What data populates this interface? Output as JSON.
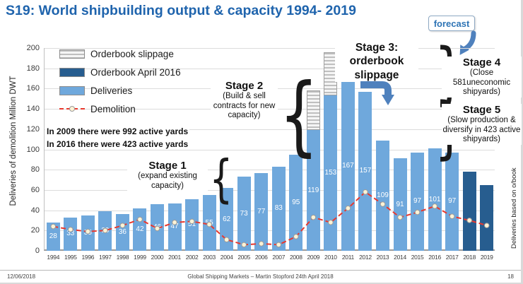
{
  "slide": {
    "title": "S19: World shipbuilding output & capacity 1994- 2019",
    "forecast_label": "forecast",
    "page_number": "18",
    "footer_date": "12/06/2018",
    "footer_center": "Global Shipping Markets – Martin Stopford 24th April 2018"
  },
  "annotations": {
    "yards_2009": "In 2009 there were 992 active yards",
    "yards_2016": "In 2016 there were 423 active yards",
    "stage1_title": "Stage 1",
    "stage1_sub": "(expand existing capacity)",
    "stage2_title": "Stage 2",
    "stage2_sub": "(Build & sell contracts for new capacity)",
    "stage3_title": "Stage 3: orderbook slippage",
    "stage4_title": "Stage 4",
    "stage4_sub": "(Close 581uneconomic shipyards)",
    "stage5_title": "Stage 5",
    "stage5_sub": "(Slow production & diversify in 423 active shipyards)",
    "right_note": "Deliveries based on o/book"
  },
  "glyphs": {
    "brace_open": "{",
    "brace_close": "}"
  },
  "colors": {
    "title_blue": "#1f64ad",
    "deliveries": "#6fa8dc",
    "orderbook": "#275d8f",
    "demolition": "#e8392e",
    "marker_fill": "#fdf3d6",
    "marker_edge": "#9b9b9b",
    "grid": "#dcdcdc",
    "forecast_text": "#2e74b5",
    "arrow_blue": "#4f81bd"
  },
  "chart_data": {
    "type": "bar",
    "title": "World shipbuilding output & capacity 1994-2019",
    "ylabel": "Deliveries of demolition Million DWT",
    "xlabel": "",
    "units": "Million DWT",
    "ylim": [
      0,
      200
    ],
    "ytick_step": 20,
    "grid": true,
    "legend_position": "top-left",
    "categories": [
      "1994",
      "1995",
      "1996",
      "1997",
      "1998",
      "1999",
      "2000",
      "2001",
      "2002",
      "2003",
      "2004",
      "2005",
      "2006",
      "2007",
      "2008",
      "2009",
      "2010",
      "2011",
      "2012",
      "2013",
      "2014",
      "2015",
      "2016",
      "2017",
      "2018",
      "2019"
    ],
    "series": [
      {
        "name": "Deliveries",
        "type": "bar",
        "color_key": "deliveries",
        "values": [
          28,
          33,
          35,
          39,
          36,
          42,
          46,
          47,
          51,
          55,
          62,
          73,
          77,
          83,
          95,
          119,
          153,
          167,
          157,
          109,
          91,
          97,
          101,
          97,
          null,
          null
        ]
      },
      {
        "name": "Orderbook April 2016",
        "type": "bar",
        "color_key": "orderbook",
        "values": [
          null,
          null,
          null,
          null,
          null,
          null,
          null,
          null,
          null,
          null,
          null,
          null,
          null,
          null,
          null,
          null,
          null,
          null,
          null,
          null,
          null,
          null,
          null,
          null,
          78,
          65
        ]
      },
      {
        "name": "Orderbook slippage",
        "type": "bar_stacked",
        "pattern": "gray-hatch",
        "values": [
          0,
          0,
          0,
          0,
          0,
          0,
          0,
          0,
          0,
          0,
          0,
          0,
          0,
          0,
          0,
          39,
          43,
          0,
          0,
          0,
          0,
          0,
          0,
          0,
          0,
          0
        ]
      },
      {
        "name": "Demolition",
        "type": "line",
        "color_key": "demolition",
        "marker": "circle",
        "line_style": "dashed",
        "values": [
          24,
          21,
          19,
          20,
          25,
          31,
          22,
          28,
          29,
          26,
          11,
          6,
          7,
          6,
          14,
          33,
          28,
          42,
          58,
          46,
          33,
          38,
          44,
          34,
          30,
          25
        ]
      }
    ],
    "legend": [
      {
        "label": "Orderbook slippage",
        "swatch": "hatch"
      },
      {
        "label": "Orderbook April 2016",
        "swatch": "orderbook"
      },
      {
        "label": "Deliveries",
        "swatch": "deliveries"
      },
      {
        "label": "Demolition",
        "swatch": "line"
      }
    ]
  }
}
